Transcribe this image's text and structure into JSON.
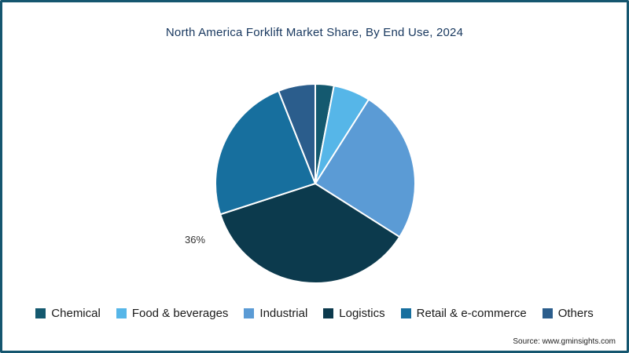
{
  "title": "North America Forklift Market Share, By End Use, 2024",
  "source": "Source: www.gminsights.com",
  "frame": {
    "border_color": "#15566f"
  },
  "chart_data": {
    "type": "pie",
    "title": "North America Forklift Market Share, By End Use, 2024",
    "legend_position": "bottom",
    "start_angle_deg": 0,
    "direction": "clockwise",
    "slices": [
      {
        "label": "Chemical",
        "value": 3,
        "color": "#14596f"
      },
      {
        "label": "Food & beverages",
        "value": 6,
        "color": "#56b6e8"
      },
      {
        "label": "Industrial",
        "value": 25,
        "color": "#5b9bd5"
      },
      {
        "label": "Logistics",
        "value": 36,
        "color": "#0c3a4d",
        "data_label": "36%"
      },
      {
        "label": "Retail & e-commerce",
        "value": 24,
        "color": "#176f9e"
      },
      {
        "label": "Others",
        "value": 6,
        "color": "#2b5d8c"
      }
    ],
    "annotations": [
      {
        "text": "36%",
        "target": "Logistics",
        "position": "outside-left"
      }
    ]
  }
}
